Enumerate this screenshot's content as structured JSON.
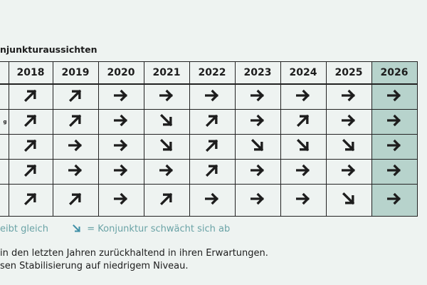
{
  "title": "njunkturaussichten",
  "columns": [
    "2018",
    "2019",
    "2020",
    "2021",
    "2022",
    "2023",
    "2024",
    "2025",
    "2026"
  ],
  "highlight_column": "2026",
  "colors": {
    "highlight": "#b7d3cc",
    "legend": "#6aa3a6",
    "arrow_legend_down": "#3f8fa6"
  },
  "rows": [
    {
      "label": "",
      "arrows": [
        "up",
        "up",
        "flat",
        "flat",
        "flat",
        "flat",
        "flat",
        "flat",
        "flat"
      ]
    },
    {
      "label": "g",
      "arrows": [
        "up",
        "up",
        "flat",
        "down",
        "up",
        "flat",
        "up",
        "flat",
        "flat"
      ]
    },
    {
      "label": "",
      "arrows": [
        "up",
        "flat",
        "flat",
        "down",
        "up",
        "down",
        "down",
        "down",
        "flat"
      ]
    },
    {
      "label": "",
      "arrows": [
        "up",
        "flat",
        "flat",
        "flat",
        "up",
        "flat",
        "flat",
        "flat",
        "flat"
      ]
    },
    {
      "label": "",
      "arrows": [
        "up",
        "up",
        "flat",
        "up",
        "flat",
        "flat",
        "flat",
        "down",
        "flat"
      ]
    }
  ],
  "legend": {
    "flat_text": "eibt gleich",
    "down_text": "= Konjunktur schwächt sich ab"
  },
  "notes": [
    "in den letzten Jahren zurückhaltend in ihren Erwartungen.",
    "sen Stabilisierung auf niedrigem Niveau."
  ]
}
